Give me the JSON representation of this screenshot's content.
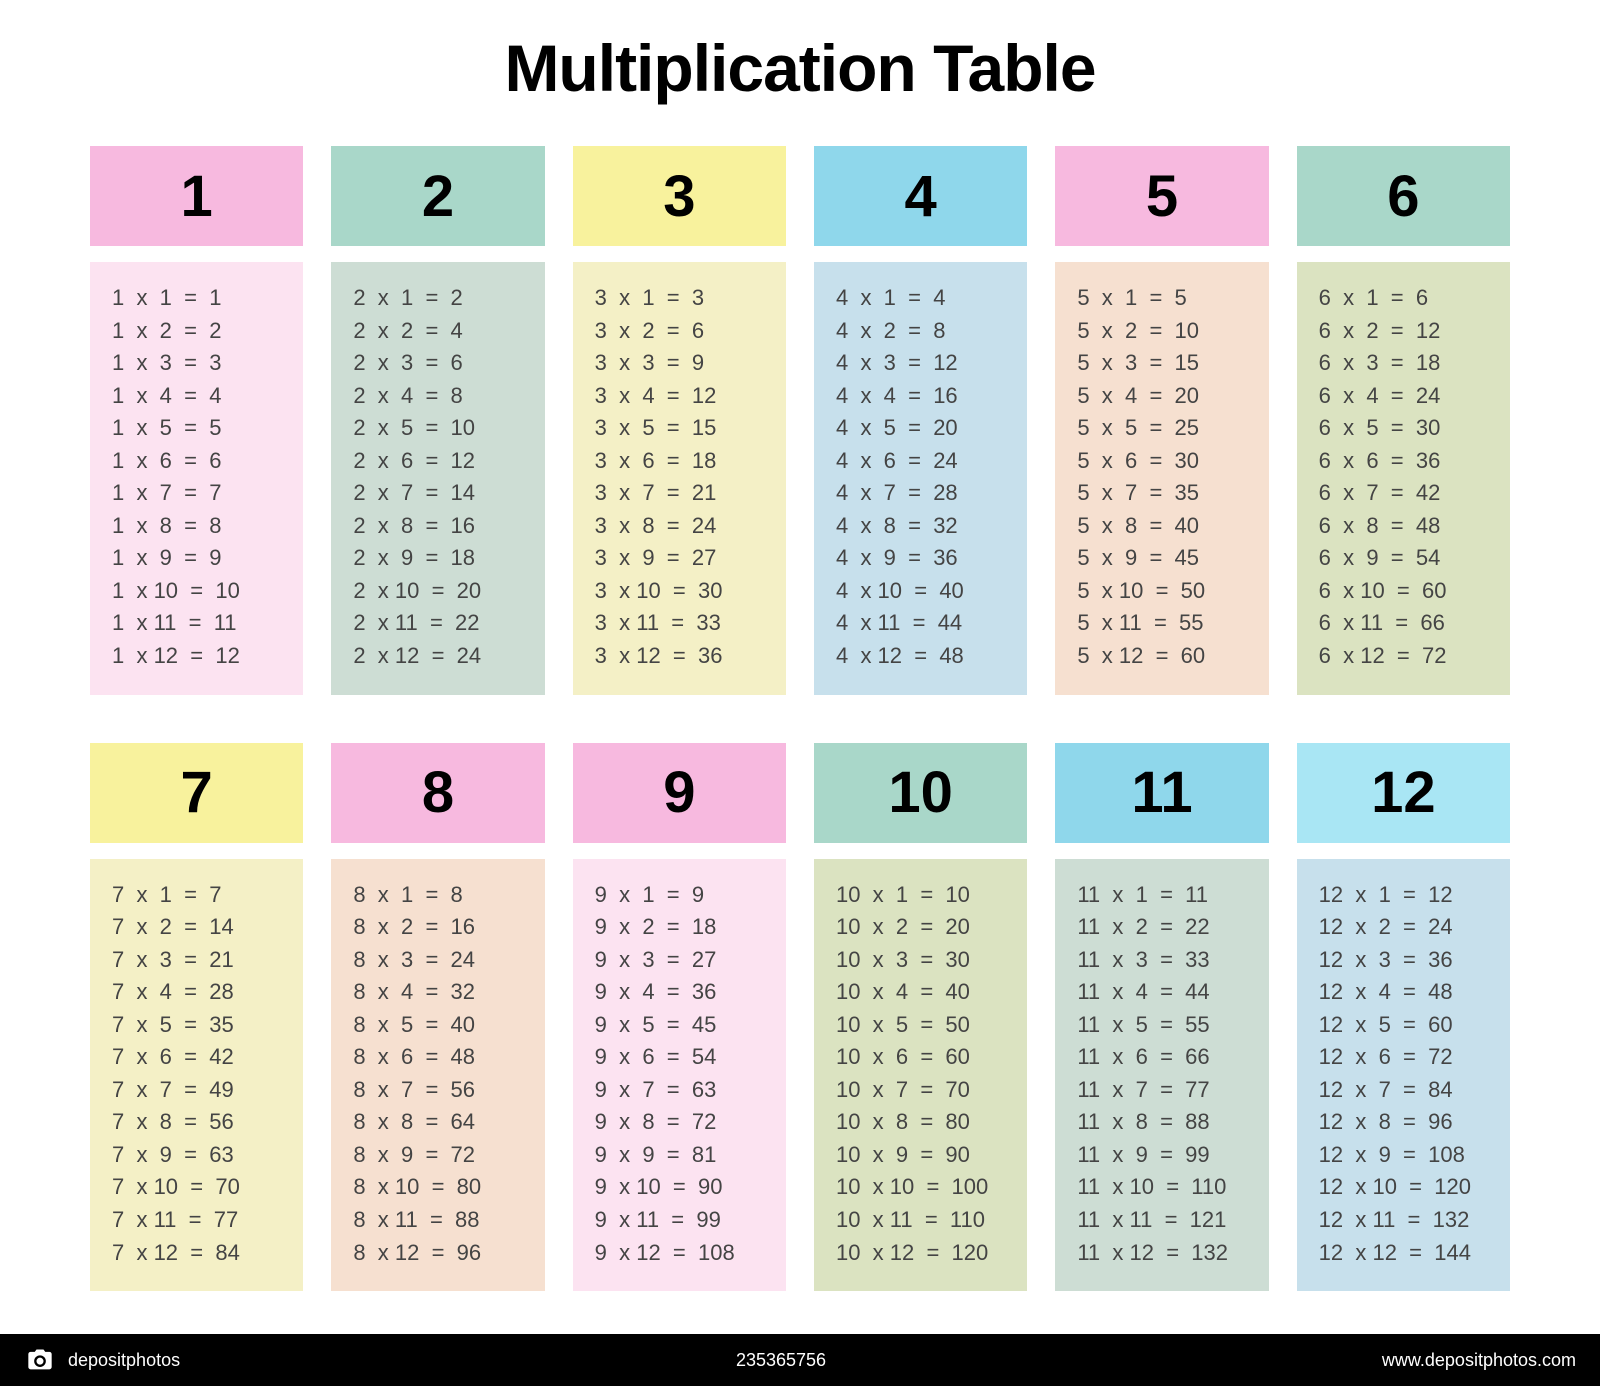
{
  "title": "Multiplication Table",
  "title_fontsize": 66,
  "title_color": "#000000",
  "background_color": "#ffffff",
  "grid": {
    "cols": 6,
    "rows": 2,
    "gap": 28,
    "row_gap": 48
  },
  "row_range": {
    "from": 1,
    "to": 12
  },
  "header_fontsize": 58,
  "header_text_color": "#000000",
  "body_fontsize": 22,
  "body_text_color": "#444444",
  "card_header_height": 100,
  "tables": [
    {
      "n": 1,
      "header_label": "1",
      "header_bg": "#f7b9df",
      "body_bg": "#fce3f1"
    },
    {
      "n": 2,
      "header_label": "2",
      "header_bg": "#a9d7c9",
      "body_bg": "#cdddd4"
    },
    {
      "n": 3,
      "header_label": "3",
      "header_bg": "#f8f29d",
      "body_bg": "#f4f0c6"
    },
    {
      "n": 4,
      "header_label": "4",
      "header_bg": "#8fd7eb",
      "body_bg": "#c7e0ec"
    },
    {
      "n": 5,
      "header_label": "5",
      "header_bg": "#f7b9df",
      "body_bg": "#f6e0d0"
    },
    {
      "n": 6,
      "header_label": "6",
      "header_bg": "#a9d7c9",
      "body_bg": "#dbe3c1"
    },
    {
      "n": 7,
      "header_label": "7",
      "header_bg": "#f8f29d",
      "body_bg": "#f4f0c6"
    },
    {
      "n": 8,
      "header_label": "8",
      "header_bg": "#f7b9df",
      "body_bg": "#f6e0d0"
    },
    {
      "n": 9,
      "header_label": "9",
      "header_bg": "#f7b9df",
      "body_bg": "#fce3f1"
    },
    {
      "n": 10,
      "header_label": "10",
      "header_bg": "#a9d7c9",
      "body_bg": "#dbe3c1"
    },
    {
      "n": 11,
      "header_label": "11",
      "header_bg": "#8fd7eb",
      "body_bg": "#cdddd4"
    },
    {
      "n": 12,
      "header_label": "12",
      "header_bg": "#a9e6f4",
      "body_bg": "#c7e0ec"
    }
  ],
  "footer": {
    "brand": "depositphotos",
    "image_id": "235365756",
    "url": "www.depositphotos.com",
    "bg": "#000000",
    "text_color": "#ffffff"
  }
}
